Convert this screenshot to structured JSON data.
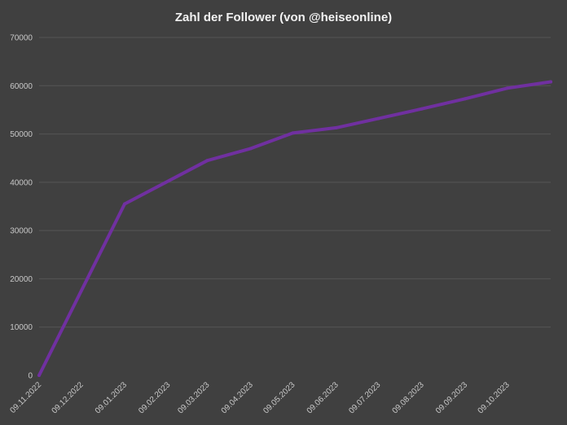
{
  "chart_data": {
    "type": "line",
    "title": "Zahl der Follower (von @heiseonline)",
    "xlabel": "",
    "ylabel": "",
    "x_ticks": [
      "09.11.2022",
      "09.12.2022",
      "09.01.2023",
      "09.02.2023",
      "09.03.2023",
      "09.04.2023",
      "09.05.2023",
      "09.06.2023",
      "09.07.2023",
      "09.08.2023",
      "09.09.2023",
      "09.10.2023"
    ],
    "y_ticks": [
      0,
      10000,
      20000,
      30000,
      40000,
      50000,
      60000,
      70000
    ],
    "ylim": [
      0,
      70000
    ],
    "xlim": [
      "09.11.2022",
      "09.11.2023"
    ],
    "grid": true,
    "legend": "none",
    "series": [
      {
        "color": "#7030a0",
        "points": [
          {
            "x": "09.11.2022",
            "y": 0
          },
          {
            "x": "09.01.2023",
            "y": 35500
          },
          {
            "x": "09.03.2023",
            "y": 44500
          },
          {
            "x": "09.04.2023",
            "y": 47000
          },
          {
            "x": "09.05.2023",
            "y": 50200
          },
          {
            "x": "09.06.2023",
            "y": 51300
          },
          {
            "x": "09.07.2023",
            "y": 53200
          },
          {
            "x": "09.08.2023",
            "y": 55200
          },
          {
            "x": "09.09.2023",
            "y": 57300
          },
          {
            "x": "09.10.2023",
            "y": 59500
          },
          {
            "x": "09.11.2023",
            "y": 60800
          }
        ]
      }
    ]
  }
}
